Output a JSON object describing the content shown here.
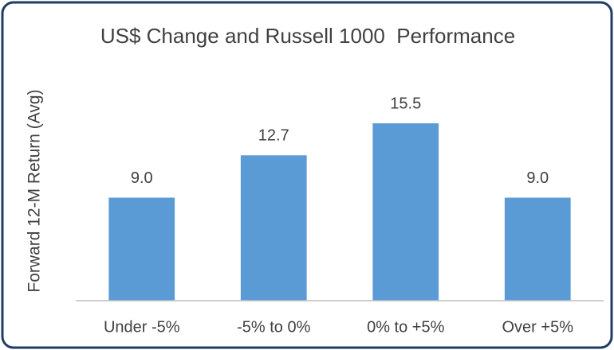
{
  "chart_data": {
    "type": "bar",
    "title": "US$ Change and Russell 1000  Performance",
    "y_label": "Forward 12-M Return (Avg)",
    "categories": [
      "Under -5%",
      "-5% to 0%",
      "0% to +5%",
      "Over +5%"
    ],
    "values": [
      9,
      12.7,
      15.5,
      9
    ],
    "value_labels": [
      "9.0",
      "12.7",
      "15.5",
      "9.0"
    ],
    "color": "#5b9bd5",
    "ylim": [
      0,
      18
    ]
  }
}
